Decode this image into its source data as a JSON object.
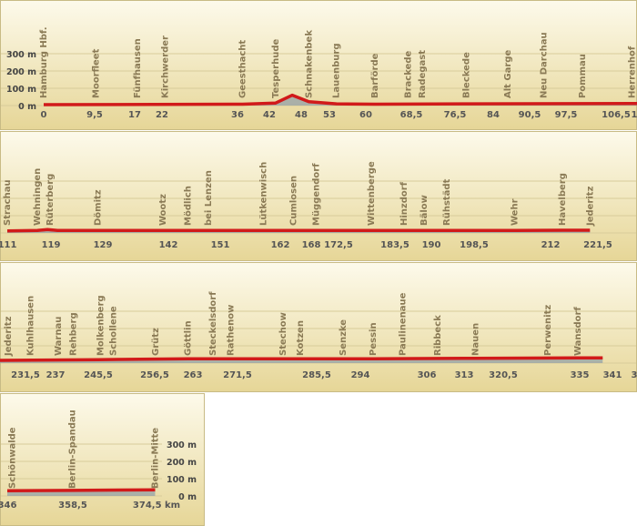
{
  "chart_data": {
    "type": "area",
    "y_axis": {
      "labels": [
        "300 m",
        "200 m",
        "100 m",
        "0 m"
      ],
      "values": [
        300,
        200,
        100,
        0
      ]
    },
    "x_unit": "km",
    "colors": {
      "bg_top": "#fdfaeb",
      "bg_bottom": "#e6d697",
      "line": "#d11a1a",
      "fill": "#9aa4a8",
      "grid": "#d8cc9a",
      "text": "#8a7a55",
      "ticks": "#555555"
    },
    "rows": [
      {
        "stations": [
          {
            "name": "Hamburg Hbf.",
            "km": 0
          },
          {
            "name": "Moorfleet",
            "km": 9.5
          },
          {
            "name": "Fünfhausen",
            "km": 17
          },
          {
            "name": "Kirchwerder",
            "km": 22
          },
          {
            "name": "Geesthacht",
            "km": 36
          },
          {
            "name": "Tesperhude",
            "km": 42
          },
          {
            "name": "Schnakenbek",
            "km": 48
          },
          {
            "name": "Lauenburg",
            "km": 53
          },
          {
            "name": "Barförde",
            "km": 60
          },
          {
            "name": "Brackede",
            "km": 66
          },
          {
            "name": "Radegast",
            "km": 68.5
          },
          {
            "name": "Bleckede",
            "km": 76.5
          },
          {
            "name": "Alt Garge",
            "km": 84
          },
          {
            "name": "Neu Darchau",
            "km": 90.5
          },
          {
            "name": "Pommau",
            "km": 97.5
          },
          {
            "name": "Herrenhof",
            "km": 106.5
          }
        ],
        "ticks": [
          "0",
          "9,5",
          "17",
          "22",
          "36",
          "42",
          "48",
          "53",
          "60",
          "68,5",
          "76,5",
          "84",
          "90,5",
          "97,5",
          "106,5",
          "1"
        ],
        "elevation": [
          [
            0,
            5
          ],
          [
            36,
            8
          ],
          [
            42,
            15
          ],
          [
            45,
            60
          ],
          [
            48,
            22
          ],
          [
            53,
            10
          ],
          [
            60,
            8
          ],
          [
            76.5,
            10
          ],
          [
            106.5,
            12
          ],
          [
            111,
            12
          ]
        ]
      },
      {
        "stations": [
          {
            "name": "Strachau",
            "km": 111
          },
          {
            "name": "Wehningen",
            "km": 117
          },
          {
            "name": "Rüterberg",
            "km": 119.5
          },
          {
            "name": "Dömitz",
            "km": 129
          },
          {
            "name": "Wootz",
            "km": 142
          },
          {
            "name": "Mödlich",
            "km": 147
          },
          {
            "name": "bei Lenzen",
            "km": 151
          },
          {
            "name": "Lütkenwisch",
            "km": 162
          },
          {
            "name": "Cumlosen",
            "km": 168
          },
          {
            "name": "Müggendorf",
            "km": 172.5
          },
          {
            "name": "Wittenberge",
            "km": 183.5
          },
          {
            "name": "Hinzdorf",
            "km": 190
          },
          {
            "name": "Bälow",
            "km": 194
          },
          {
            "name": "Rühstädt",
            "km": 198.5
          },
          {
            "name": "Wehr",
            "km": 212
          },
          {
            "name": "Havelberg",
            "km": 221.5
          },
          {
            "name": "Jederitz",
            "km": 227
          }
        ],
        "ticks": [
          "111",
          "119",
          "129",
          "142",
          "151",
          "162",
          "168",
          "172,5",
          "183,5",
          "190",
          "198,5",
          "212",
          "221,5"
        ],
        "elevation": [
          [
            111,
            12
          ],
          [
            117,
            14
          ],
          [
            119,
            20
          ],
          [
            121,
            14
          ],
          [
            142,
            14
          ],
          [
            162,
            14
          ],
          [
            190,
            14
          ],
          [
            212,
            14
          ],
          [
            221.5,
            16
          ],
          [
            227,
            16
          ]
        ]
      },
      {
        "stations": [
          {
            "name": "Jederitz",
            "km": 227
          },
          {
            "name": "Kuhlhausen",
            "km": 231.5
          },
          {
            "name": "Warnau",
            "km": 237
          },
          {
            "name": "Rehberg",
            "km": 240
          },
          {
            "name": "Molkenberg",
            "km": 245.5
          },
          {
            "name": "Schollene",
            "km": 248
          },
          {
            "name": "Grütz",
            "km": 256.5
          },
          {
            "name": "Göttlin",
            "km": 263
          },
          {
            "name": "Steckelsdorf",
            "km": 268
          },
          {
            "name": "Rathenow",
            "km": 271.5
          },
          {
            "name": "Stechow",
            "km": 282
          },
          {
            "name": "Kotzen",
            "km": 285.5
          },
          {
            "name": "Senzke",
            "km": 294
          },
          {
            "name": "Pessin",
            "km": 300
          },
          {
            "name": "Paulinenaue",
            "km": 306
          },
          {
            "name": "Ribbeck",
            "km": 313
          },
          {
            "name": "Nauen",
            "km": 320.5
          },
          {
            "name": "Perwenitz",
            "km": 335
          },
          {
            "name": "Wansdorf",
            "km": 341
          }
        ],
        "ticks": [
          "231,5",
          "237",
          "245,5",
          "256,5",
          "263",
          "271,5",
          "285,5",
          "294",
          "306",
          "313",
          "320,5",
          "335",
          "341",
          "3"
        ],
        "elevation": [
          [
            225,
            16
          ],
          [
            245,
            20
          ],
          [
            263,
            25
          ],
          [
            285,
            25
          ],
          [
            300,
            25
          ],
          [
            320.5,
            28
          ],
          [
            341,
            30
          ],
          [
            346,
            30
          ]
        ]
      },
      {
        "stations": [
          {
            "name": "Schönwalde",
            "km": 347
          },
          {
            "name": "Berlin-Spandau",
            "km": 358.5
          },
          {
            "name": "Berlin-Mitte",
            "km": 374.5
          }
        ],
        "ticks": [
          "346",
          "358,5",
          "374,5"
        ],
        "end_label": "374,5 km",
        "elevation": [
          [
            346,
            30
          ],
          [
            358.5,
            32
          ],
          [
            374.5,
            36
          ]
        ]
      }
    ]
  }
}
